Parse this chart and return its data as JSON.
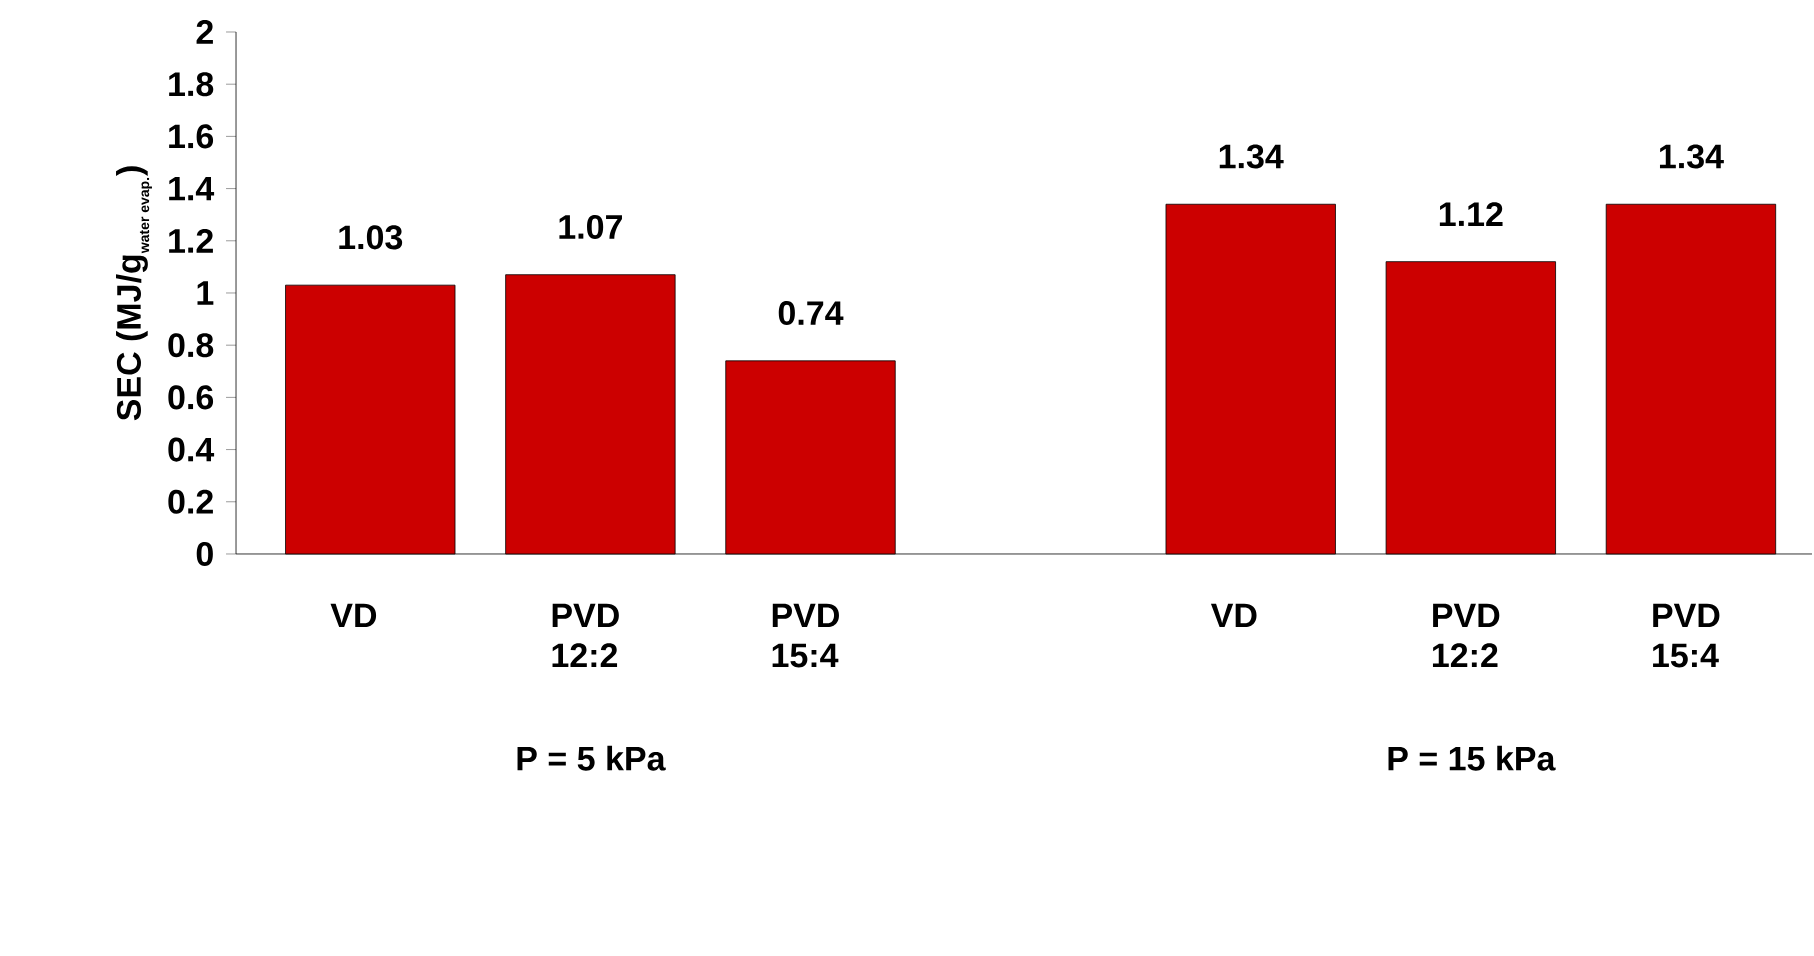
{
  "chart_data": {
    "type": "bar",
    "ylabel": "\\mbox{SEC (MJ/g}_{\\mbox{\\scriptsize water evap.}}\\mbox{)}",
    "categories": [
      "VD",
      "PVD 12:2",
      "PVD 15:4",
      null,
      "VD",
      "PVD 12:2",
      "PVD 15:4"
    ],
    "values": [
      1.03,
      1.07,
      0.74,
      null,
      1.34,
      1.12,
      1.34
    ],
    "color": "#cc0000",
    "ylim": [
      0,
      2
    ],
    "yticks": [
      0,
      0.2,
      0.4,
      0.6,
      0.8,
      1,
      1.2,
      1.4,
      1.6,
      1.8,
      2
    ],
    "data_labels": true,
    "grid": false,
    "annotations": [
      "P = 5 kPa",
      "P = 15 kPa"
    ]
  }
}
